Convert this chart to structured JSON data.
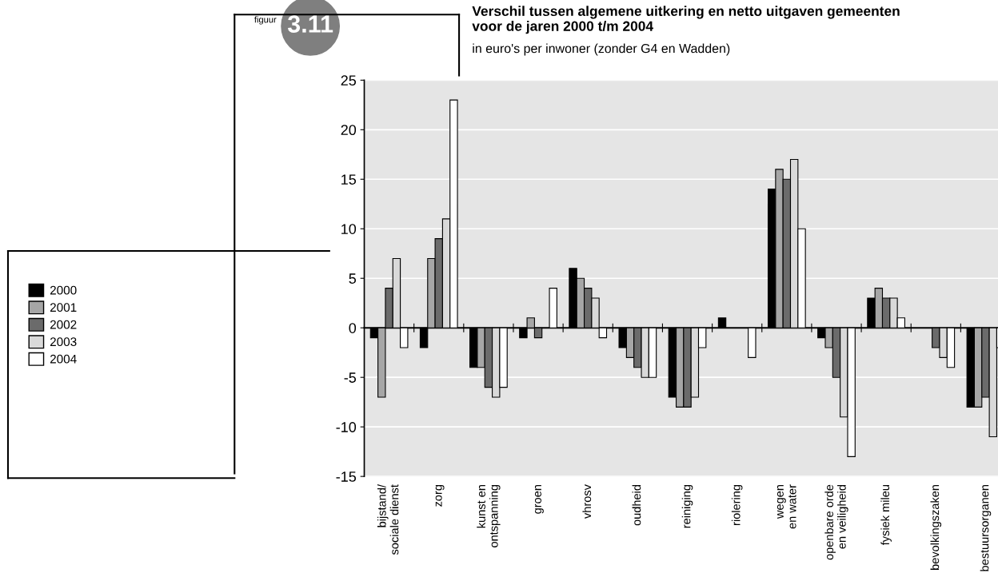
{
  "chart_data": {
    "type": "bar",
    "title": "Verschil tussen algemene uitkering en netto uitgaven gemeenten\nvoor de jaren 2000 t/m 2004",
    "subtitle": "in euro's per inwoner (zonder G4 en Wadden)",
    "annotations": [
      "figuur",
      "3.11"
    ],
    "categories": [
      "bijstand/\nsociale dienst",
      "zorg",
      "kunst en\nontspanning",
      "groen",
      "vhrosv",
      "oudheid",
      "reiniging",
      "riolering",
      "wegen\nen water",
      "openbare orde\nen veiligheid",
      "fysiek mileu",
      "bevolkingszaken",
      "bestuursorganen"
    ],
    "series": [
      {
        "name": "2000",
        "color": "#000000",
        "values": [
          -1,
          -2,
          -4,
          -1,
          6,
          -2,
          -7,
          1,
          14,
          -1,
          3,
          0,
          -8
        ]
      },
      {
        "name": "2001",
        "color": "#a6a6a6",
        "values": [
          -7,
          7,
          -4,
          1,
          5,
          -3,
          -8,
          0,
          16,
          -2,
          4,
          0,
          -8
        ]
      },
      {
        "name": "2002",
        "color": "#6b6b6b",
        "values": [
          4,
          9,
          -6,
          -1,
          4,
          -4,
          -8,
          0,
          15,
          -5,
          3,
          -2,
          -7
        ]
      },
      {
        "name": "2003",
        "color": "#d9d9d9",
        "values": [
          7,
          11,
          -7,
          0,
          3,
          -5,
          -7,
          0,
          17,
          -9,
          3,
          -3,
          -11
        ]
      },
      {
        "name": "2004",
        "color": "#ffffff",
        "values": [
          -2,
          23,
          -6,
          4,
          -1,
          -5,
          -2,
          -3,
          10,
          -13,
          1,
          -4,
          -2
        ]
      }
    ],
    "ylim": [
      -15,
      25
    ],
    "yticks": [
      -15,
      -10,
      -5,
      0,
      5,
      10,
      15,
      20,
      25
    ],
    "grid": "y",
    "legend": "left"
  }
}
